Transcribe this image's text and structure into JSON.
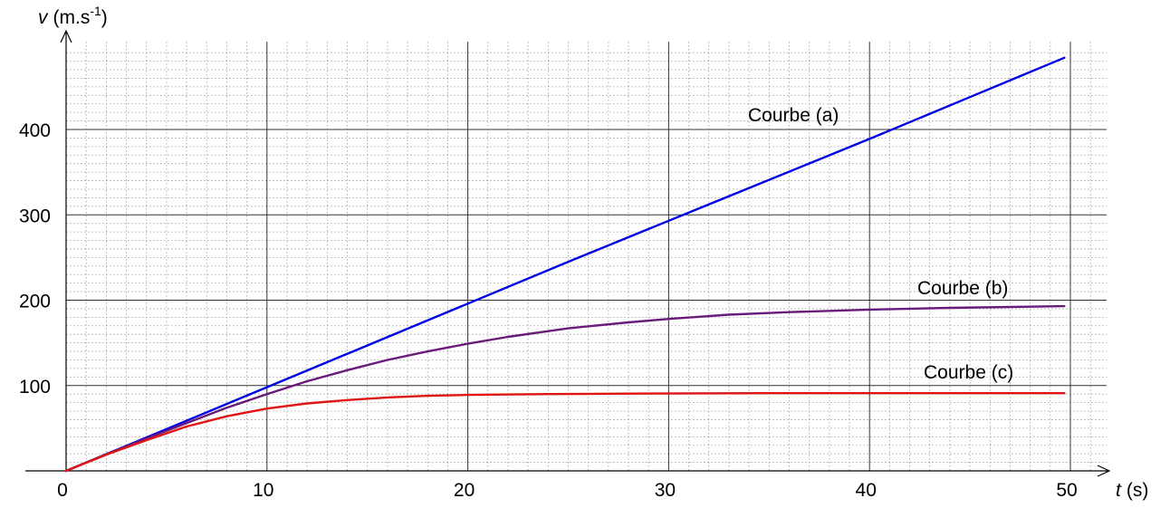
{
  "chart_data": {
    "type": "line",
    "xlabel_var": "t",
    "xlabel_unit": "(s)",
    "ylabel_var": "v",
    "ylabel_unit_base": "(m.s",
    "ylabel_unit_exp": "-1",
    "ylabel_unit_close": ")",
    "xlim": [
      0,
      50
    ],
    "ylim": [
      0,
      480
    ],
    "x_ticks": [
      0,
      10,
      20,
      30,
      40,
      50
    ],
    "y_ticks": [
      100,
      200,
      300,
      400
    ],
    "grid": true,
    "series": [
      {
        "name": "Courbe (a)",
        "color": "#0000e6",
        "x": [
          0,
          5,
          10,
          15,
          20,
          25,
          30,
          35,
          40,
          45,
          49.7
        ],
        "y": [
          0,
          49,
          98,
          147,
          196,
          245,
          293,
          341,
          389,
          438,
          484
        ]
      },
      {
        "name": "Courbe (b)",
        "color": "#6a1b7a",
        "x": [
          0,
          2,
          4,
          6,
          8,
          10,
          12,
          14,
          16,
          18,
          20,
          22,
          25,
          28,
          30,
          33,
          36,
          40,
          44,
          49.7
        ],
        "y": [
          0,
          19.5,
          38,
          56,
          74,
          90,
          105,
          118,
          130,
          140,
          149,
          157,
          167,
          174,
          178,
          183,
          186,
          189,
          191,
          193
        ]
      },
      {
        "name": "Courbe (c)",
        "color": "#e01414",
        "x": [
          0,
          2,
          4,
          6,
          8,
          10,
          12,
          14,
          16,
          18,
          20,
          24,
          28,
          35,
          42,
          49.7
        ],
        "y": [
          0,
          19,
          36,
          52,
          64,
          73,
          79,
          83,
          86,
          88,
          89,
          90,
          90.5,
          91,
          91,
          91
        ]
      }
    ]
  }
}
